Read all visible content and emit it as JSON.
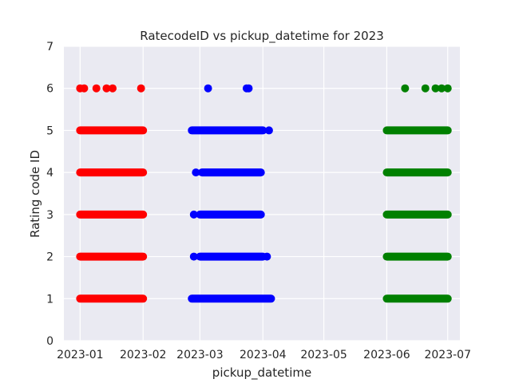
{
  "chart_data": {
    "type": "scatter",
    "title": "RatecodeID vs pickup_datetime for 2023",
    "xlabel": "pickup_datetime",
    "ylabel": "Rating code ID",
    "xlim": [
      "2022-12-24",
      "2023-07-07"
    ],
    "ylim": [
      0,
      7
    ],
    "x_ticks": [
      "2023-01",
      "2023-02",
      "2023-03",
      "2023-04",
      "2023-05",
      "2023-06",
      "2023-07"
    ],
    "y_ticks": [
      0,
      1,
      2,
      3,
      4,
      5,
      6,
      7
    ],
    "grid": true,
    "background": "#eaeaf2",
    "series": [
      {
        "color": "#ff0000",
        "bands": [
          {
            "y": 1,
            "start": "2023-01-01",
            "end": "2023-02-01"
          },
          {
            "y": 2,
            "start": "2023-01-01",
            "end": "2023-02-01"
          },
          {
            "y": 3,
            "start": "2023-01-01",
            "end": "2023-02-01"
          },
          {
            "y": 4,
            "start": "2023-01-01",
            "end": "2023-02-01"
          },
          {
            "y": 5,
            "start": "2023-01-01",
            "end": "2023-02-01"
          }
        ],
        "points": [
          {
            "x": "2023-01-01",
            "y": 6
          },
          {
            "x": "2023-01-03",
            "y": 6
          },
          {
            "x": "2023-01-09",
            "y": 6
          },
          {
            "x": "2023-01-14",
            "y": 6
          },
          {
            "x": "2023-01-17",
            "y": 6
          },
          {
            "x": "2023-01-31",
            "y": 6
          }
        ]
      },
      {
        "color": "#0000ff",
        "bands": [
          {
            "y": 1,
            "start": "2023-02-25",
            "end": "2023-04-05"
          },
          {
            "y": 2,
            "start": "2023-03-01",
            "end": "2023-04-01"
          },
          {
            "y": 3,
            "start": "2023-03-01",
            "end": "2023-03-31"
          },
          {
            "y": 4,
            "start": "2023-03-02",
            "end": "2023-03-31"
          },
          {
            "y": 5,
            "start": "2023-02-25",
            "end": "2023-04-01"
          }
        ],
        "points": [
          {
            "x": "2023-02-26",
            "y": 2
          },
          {
            "x": "2023-02-26",
            "y": 3
          },
          {
            "x": "2023-02-27",
            "y": 4
          },
          {
            "x": "2023-04-03",
            "y": 2
          },
          {
            "x": "2023-04-04",
            "y": 5
          },
          {
            "x": "2023-03-05",
            "y": 6
          },
          {
            "x": "2023-03-24",
            "y": 6
          },
          {
            "x": "2023-03-25",
            "y": 6
          }
        ]
      },
      {
        "color": "#008000",
        "bands": [
          {
            "y": 1,
            "start": "2023-06-01",
            "end": "2023-07-01"
          },
          {
            "y": 2,
            "start": "2023-06-01",
            "end": "2023-07-01"
          },
          {
            "y": 3,
            "start": "2023-06-01",
            "end": "2023-07-01"
          },
          {
            "y": 4,
            "start": "2023-06-01",
            "end": "2023-07-01"
          },
          {
            "y": 5,
            "start": "2023-06-01",
            "end": "2023-07-01"
          }
        ],
        "points": [
          {
            "x": "2023-06-10",
            "y": 6
          },
          {
            "x": "2023-06-20",
            "y": 6
          },
          {
            "x": "2023-06-25",
            "y": 6
          },
          {
            "x": "2023-06-28",
            "y": 6
          },
          {
            "x": "2023-07-01",
            "y": 6
          }
        ]
      }
    ]
  }
}
